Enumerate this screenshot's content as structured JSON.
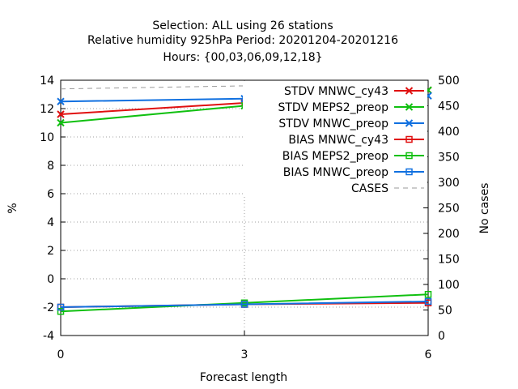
{
  "chart_data": {
    "type": "line",
    "title": [
      "Selection: ALL using    26 stations",
      "Relative humidity 925hPa   Period: 20201204-20201216",
      "Hours: {00,03,06,09,12,18}"
    ],
    "xlabel": "Forecast length",
    "ylabel": "%",
    "y2label": "No cases",
    "x": [
      0,
      3,
      6
    ],
    "xlim": [
      0,
      6
    ],
    "ylim": [
      -4,
      14
    ],
    "y2lim": [
      0,
      500
    ],
    "xticks": [
      "0",
      "3",
      "6"
    ],
    "yticks": [
      "-4",
      "-2",
      "0",
      "2",
      "4",
      "6",
      "8",
      "10",
      "12",
      "14"
    ],
    "y2ticks": [
      "0",
      "50",
      "100",
      "150",
      "200",
      "250",
      "300",
      "350",
      "400",
      "450",
      "500"
    ],
    "grid": true,
    "legend_position": "top-right",
    "series": [
      {
        "name": "STDV MNWC_cy43",
        "color": "#e01010",
        "marker": "x",
        "axis": "y",
        "values": [
          11.6,
          12.4,
          13.3
        ]
      },
      {
        "name": "STDV MEPS2_preop",
        "color": "#10c010",
        "marker": "x",
        "axis": "y",
        "values": [
          11.0,
          12.2,
          13.3
        ]
      },
      {
        "name": "STDV MNWC_preop",
        "color": "#1070e0",
        "marker": "x",
        "axis": "y",
        "values": [
          12.5,
          12.7,
          12.9
        ]
      },
      {
        "name": "BIAS MNWC_cy43",
        "color": "#e01010",
        "marker": "square",
        "axis": "y",
        "values": [
          -2.0,
          -1.8,
          -1.7
        ]
      },
      {
        "name": "BIAS MEPS2_preop",
        "color": "#10c010",
        "marker": "square",
        "axis": "y",
        "values": [
          -2.3,
          -1.7,
          -1.1
        ]
      },
      {
        "name": "BIAS MNWC_preop",
        "color": "#1070e0",
        "marker": "square",
        "axis": "y",
        "values": [
          -2.0,
          -1.8,
          -1.6
        ]
      },
      {
        "name": "CASES",
        "color": "#999999",
        "marker": "none",
        "dashed": true,
        "axis": "y2",
        "values": [
          483,
          489,
          494
        ]
      }
    ]
  }
}
